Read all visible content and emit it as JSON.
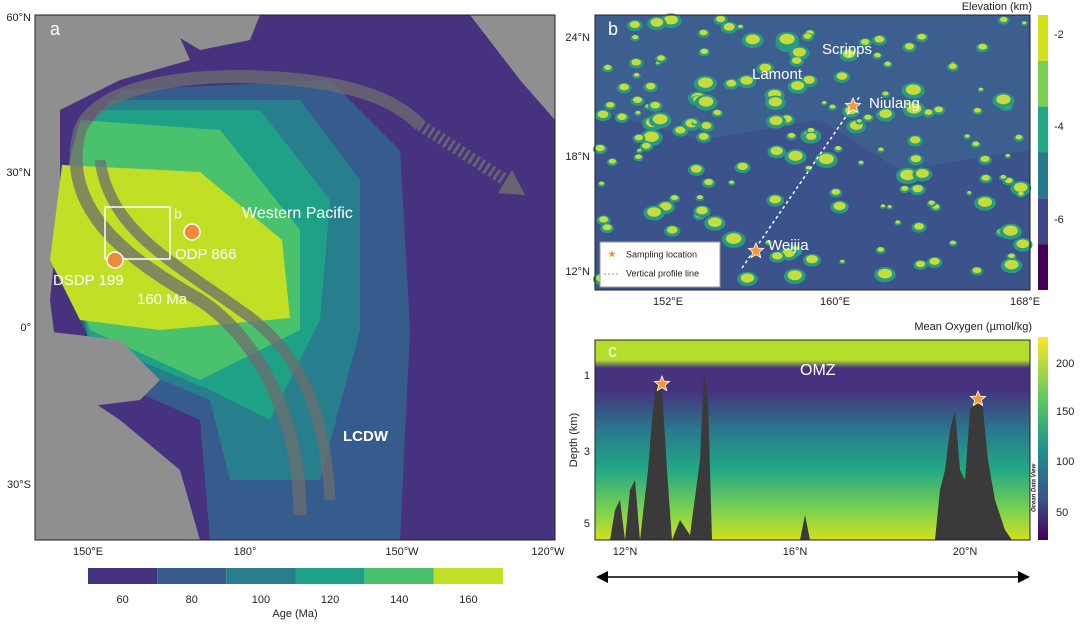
{
  "panel_a": {
    "label": "a",
    "lat_ticks": [
      "60°N",
      "30°N",
      "0°",
      "30°S"
    ],
    "lon_ticks": [
      "150°E",
      "180°",
      "150°W",
      "120°W"
    ],
    "box_label": "b",
    "annotations": {
      "region": "Western Pacific",
      "site1": "ODP 866",
      "site2": "DSDP 199",
      "age": "160 Ma",
      "current": "LCDW"
    },
    "colorbar": {
      "ticks": [
        60,
        80,
        100,
        120,
        140,
        160
      ],
      "title": "Age (Ma)"
    }
  },
  "panel_b": {
    "label": "b",
    "colorbar_title": "Elevation (km)",
    "lat_ticks": [
      "24°N",
      "18°N",
      "12°N"
    ],
    "lon_ticks": [
      "152°E",
      "160°E",
      "168°E"
    ],
    "sites": [
      "Scripps",
      "Lamont",
      "Niulang",
      "Weijia"
    ],
    "legend": [
      "Sampling location",
      "Vertical profile line"
    ],
    "colorbar_ticks": [
      -2,
      -4,
      -6
    ]
  },
  "panel_c": {
    "label": "c",
    "colorbar_title": "Mean Oxygen (µmol/kg)",
    "zone": "OMZ",
    "y_title": "Depth (km)",
    "depth_ticks": [
      1,
      3,
      5
    ],
    "lat_ticks": [
      "12°N",
      "16°N",
      "20°N"
    ],
    "colorbar_ticks": [
      200,
      150,
      100,
      50
    ],
    "credit": "Ocean Data View"
  }
}
